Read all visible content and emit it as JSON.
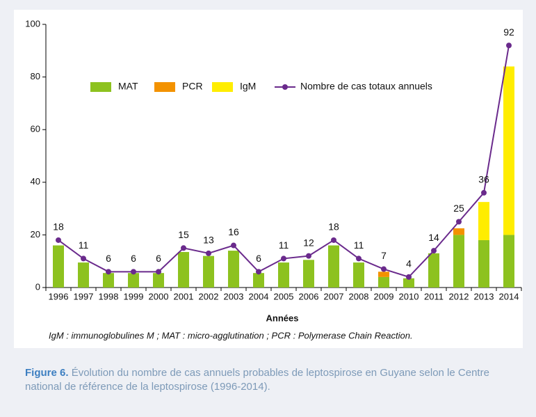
{
  "chart_data": {
    "type": "bar",
    "stacked": true,
    "categories": [
      "1996",
      "1997",
      "1998",
      "1999",
      "2000",
      "2001",
      "2002",
      "2003",
      "2004",
      "2005",
      "2006",
      "2007",
      "2008",
      "2009",
      "2010",
      "2011",
      "2012",
      "2013",
      "2014"
    ],
    "series": [
      {
        "name": "MAT",
        "color": "#8dc21f",
        "values": [
          16,
          9.5,
          5.5,
          5.5,
          5.5,
          13.5,
          12,
          14,
          5.5,
          9.5,
          10.5,
          16,
          9.5,
          4,
          3.5,
          13,
          20,
          18,
          20
        ]
      },
      {
        "name": "PCR",
        "color": "#f39200",
        "values": [
          0,
          0,
          0,
          0,
          0,
          0,
          0,
          0,
          0,
          0,
          0,
          0,
          0,
          2,
          0,
          0,
          2.5,
          0,
          0
        ]
      },
      {
        "name": "IgM",
        "color": "#ffed00",
        "values": [
          0,
          0,
          0,
          0,
          0,
          0,
          0,
          0,
          0,
          0,
          0,
          0,
          0,
          0,
          0,
          0,
          0,
          14.5,
          64
        ]
      },
      {
        "name": "Nombre de cas totaux annuels",
        "type": "line",
        "color": "#6a2a8c",
        "values": [
          18,
          11,
          6,
          6,
          6,
          15,
          13,
          16,
          6,
          11,
          12,
          18,
          11,
          7,
          4,
          14,
          25,
          36,
          92
        ]
      }
    ],
    "ylim": [
      0,
      100
    ],
    "yticks": [
      0,
      20,
      40,
      60,
      80,
      100
    ],
    "xlabel": "Années",
    "footnote": "IgM : immunoglobulines M ; MAT : micro-agglutination ; PCR : Polymerase Chain Reaction.",
    "caption_label": "Figure 6.",
    "caption": "Évolution du nombre de cas annuels probables de leptospirose en Guyane selon le Centre national de référence de la leptospirose (1996-2014)."
  }
}
